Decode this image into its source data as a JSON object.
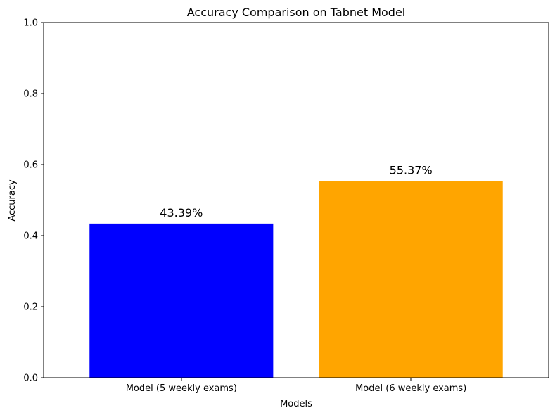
{
  "chart_data": {
    "type": "bar",
    "title": "Accuracy Comparison on Tabnet Model",
    "xlabel": "Models",
    "ylabel": "Accuracy",
    "categories": [
      "Model (5 weekly exams)",
      "Model (6 weekly exams)"
    ],
    "values": [
      0.4339,
      0.5537
    ],
    "data_labels": [
      "43.39%",
      "55.37%"
    ],
    "colors": [
      "#0000ff",
      "#ffa500"
    ],
    "ylim": [
      0,
      1
    ],
    "yticks": [
      0.0,
      0.2,
      0.4,
      0.6,
      0.8,
      1.0
    ],
    "ytick_labels": [
      "0.0",
      "0.2",
      "0.4",
      "0.6",
      "0.8",
      "1.0"
    ],
    "grid": false,
    "legend": "none"
  }
}
